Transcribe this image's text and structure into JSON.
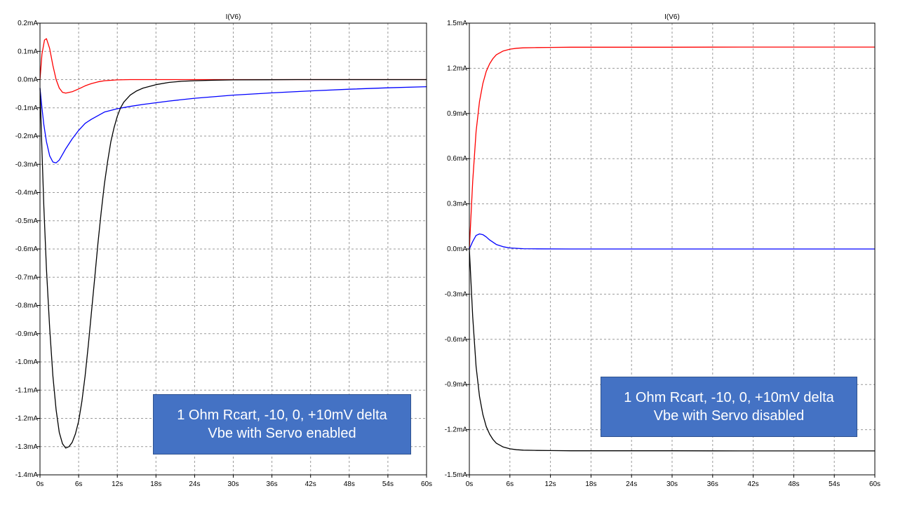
{
  "chart_data": [
    {
      "type": "line",
      "title": "I(V6)",
      "x_unit": "s",
      "y_unit": "mA",
      "xlim": [
        0,
        60
      ],
      "ylim": [
        -1.4,
        0.2
      ],
      "x_ticks": [
        "0s",
        "6s",
        "12s",
        "18s",
        "24s",
        "30s",
        "36s",
        "42s",
        "48s",
        "54s",
        "60s"
      ],
      "y_ticks": [
        "0.2mA",
        "0.1mA",
        "0.0mA",
        "-0.1mA",
        "-0.2mA",
        "-0.3mA",
        "-0.4mA",
        "-0.5mA",
        "-0.6mA",
        "-0.7mA",
        "-0.8mA",
        "-0.9mA",
        "-1.0mA",
        "-1.1mA",
        "-1.2mA",
        "-1.3mA",
        "-1.4mA"
      ],
      "grid": true,
      "annotation": [
        "1 Ohm Rcart, -10, 0, +10mV delta",
        "Vbe with Servo enabled"
      ],
      "series": [
        {
          "color": "#ff0000",
          "x": [
            0,
            0.3,
            0.7,
            1,
            1.5,
            2,
            2.5,
            3,
            3.5,
            4,
            5,
            6,
            7,
            8,
            9,
            10,
            12,
            14,
            16,
            20,
            30,
            40,
            50,
            60
          ],
          "y": [
            0,
            0.09,
            0.14,
            0.145,
            0.11,
            0.05,
            0.0,
            -0.03,
            -0.045,
            -0.048,
            -0.043,
            -0.033,
            -0.022,
            -0.014,
            -0.008,
            -0.004,
            -0.001,
            0,
            0,
            0,
            0,
            0,
            0,
            0
          ]
        },
        {
          "color": "#0000ff",
          "x": [
            0,
            0.3,
            0.6,
            1,
            1.5,
            2,
            2.5,
            3,
            3.5,
            4,
            5,
            6,
            7,
            8,
            10,
            12,
            14,
            16,
            18,
            20,
            24,
            30,
            36,
            42,
            48,
            54,
            60
          ],
          "y": [
            -0.03,
            -0.1,
            -0.16,
            -0.22,
            -0.27,
            -0.292,
            -0.295,
            -0.285,
            -0.265,
            -0.245,
            -0.21,
            -0.18,
            -0.155,
            -0.14,
            -0.115,
            -0.103,
            -0.095,
            -0.088,
            -0.082,
            -0.076,
            -0.066,
            -0.055,
            -0.047,
            -0.04,
            -0.034,
            -0.029,
            -0.025
          ]
        },
        {
          "color": "#000000",
          "x": [
            0,
            0.3,
            0.6,
            1,
            1.5,
            2,
            2.5,
            3,
            3.5,
            4,
            4.5,
            5,
            5.5,
            6,
            6.5,
            7,
            7.5,
            8,
            8.5,
            9,
            9.5,
            10,
            10.5,
            11,
            11.5,
            12,
            12.5,
            13,
            14,
            15,
            16,
            18,
            20,
            22,
            24,
            27,
            30,
            40,
            50,
            60
          ],
          "y": [
            -0.03,
            -0.25,
            -0.45,
            -0.67,
            -0.88,
            -1.05,
            -1.17,
            -1.25,
            -1.29,
            -1.305,
            -1.3,
            -1.285,
            -1.255,
            -1.21,
            -1.14,
            -1.05,
            -0.94,
            -0.82,
            -0.7,
            -0.58,
            -0.47,
            -0.37,
            -0.29,
            -0.22,
            -0.17,
            -0.13,
            -0.1,
            -0.08,
            -0.055,
            -0.04,
            -0.03,
            -0.018,
            -0.01,
            -0.006,
            -0.004,
            -0.002,
            -0.001,
            0,
            0,
            0
          ]
        }
      ]
    },
    {
      "type": "line",
      "title": "I(V6)",
      "x_unit": "s",
      "y_unit": "mA",
      "xlim": [
        0,
        60
      ],
      "ylim": [
        -1.5,
        1.5
      ],
      "x_ticks": [
        "0s",
        "6s",
        "12s",
        "18s",
        "24s",
        "30s",
        "36s",
        "42s",
        "48s",
        "54s",
        "60s"
      ],
      "y_ticks": [
        "1.5mA",
        "1.2mA",
        "0.9mA",
        "0.6mA",
        "0.3mA",
        "0.0mA",
        "-0.3mA",
        "-0.6mA",
        "-0.9mA",
        "-1.2mA",
        "-1.5mA"
      ],
      "grid": true,
      "annotation": [
        "1 Ohm Rcart, -10, 0, +10mV delta",
        "Vbe with Servo disabled"
      ],
      "series": [
        {
          "color": "#ff0000",
          "x": [
            0,
            0.5,
            1,
            1.5,
            2,
            2.5,
            3,
            3.5,
            4,
            5,
            6,
            7,
            8,
            10,
            12,
            15,
            20,
            30,
            40,
            50,
            60
          ],
          "y": [
            0,
            0.45,
            0.78,
            0.98,
            1.1,
            1.18,
            1.23,
            1.265,
            1.29,
            1.315,
            1.327,
            1.333,
            1.336,
            1.338,
            1.339,
            1.34,
            1.34,
            1.34,
            1.341,
            1.341,
            1.341
          ]
        },
        {
          "color": "#0000ff",
          "x": [
            0,
            0.5,
            1,
            1.5,
            2,
            2.5,
            3,
            4,
            5,
            6,
            8,
            10,
            15,
            20,
            30,
            40,
            50,
            60
          ],
          "y": [
            0,
            0.05,
            0.09,
            0.1,
            0.095,
            0.08,
            0.06,
            0.03,
            0.015,
            0.007,
            0.002,
            0.001,
            0,
            0,
            0,
            0,
            0,
            0
          ]
        },
        {
          "color": "#000000",
          "x": [
            0,
            0.5,
            1,
            1.5,
            2,
            2.5,
            3,
            3.5,
            4,
            5,
            6,
            7,
            8,
            10,
            12,
            15,
            20,
            30,
            40,
            50,
            60
          ],
          "y": [
            0,
            -0.45,
            -0.78,
            -0.98,
            -1.1,
            -1.18,
            -1.23,
            -1.265,
            -1.29,
            -1.315,
            -1.327,
            -1.333,
            -1.336,
            -1.338,
            -1.339,
            -1.34,
            -1.34,
            -1.34,
            -1.341,
            -1.341,
            -1.341
          ]
        }
      ]
    }
  ]
}
